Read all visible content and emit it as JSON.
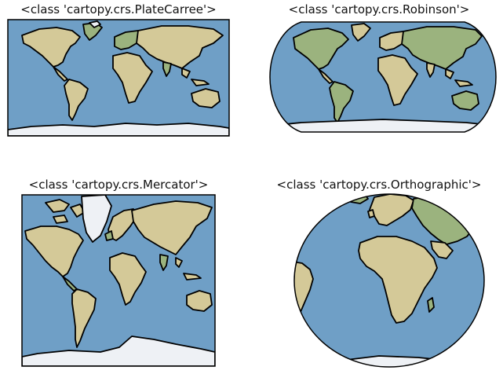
{
  "panels": [
    {
      "title": "<class 'cartopy.crs.PlateCarree'>"
    },
    {
      "title": "<class 'cartopy.crs.Robinson'>"
    },
    {
      "title": "<class 'cartopy.crs.Mercator'>"
    },
    {
      "title": "<class 'cartopy.crs.Orthographic'>"
    }
  ],
  "colors": {
    "ocean": "#6f9fc6",
    "land": "#d4c998",
    "vegetation": "#9bb37e",
    "ice": "#eef1f5",
    "coastline": "#000000"
  }
}
